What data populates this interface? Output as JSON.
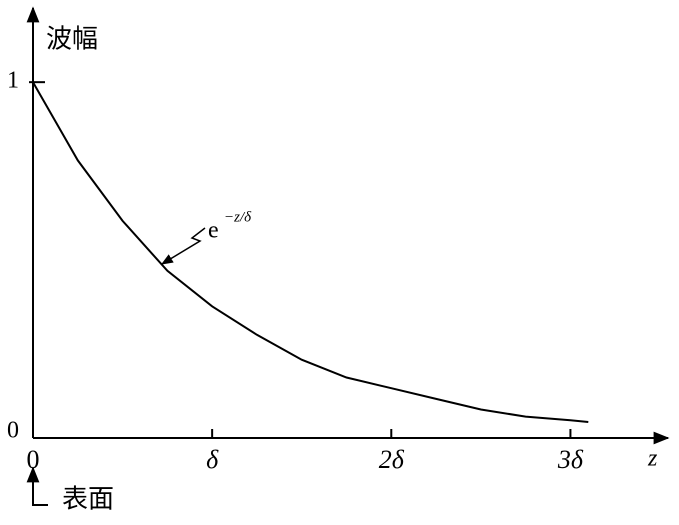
{
  "chart_data": {
    "type": "line",
    "y_label": "波幅",
    "x_label": "z",
    "annotation": "e",
    "annotation_superscript": "−z/δ",
    "surface_label": "表面",
    "x": [
      0,
      0.25,
      0.5,
      0.75,
      1,
      1.25,
      1.5,
      1.75,
      2,
      2.25,
      2.5,
      2.75,
      3,
      3.1
    ],
    "values": [
      1,
      0.78,
      0.61,
      0.47,
      0.37,
      0.29,
      0.22,
      0.17,
      0.14,
      0.11,
      0.08,
      0.06,
      0.05,
      0.045
    ],
    "color": "#000000",
    "xlim": [
      0,
      3.5
    ],
    "ylim": [
      0,
      1.2
    ],
    "xticks": [
      0,
      {
        "value": 1,
        "label": "δ"
      },
      {
        "value": 2,
        "label": "2δ"
      },
      {
        "value": 3,
        "label": "3δ"
      }
    ],
    "yticks": [
      0,
      1
    ],
    "grid": false
  }
}
